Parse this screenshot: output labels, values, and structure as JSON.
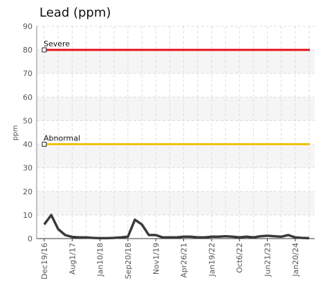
{
  "chart_data": {
    "type": "line",
    "title": "Lead (ppm)",
    "y_label": "ppm",
    "categories": [
      "Dec19/16",
      null,
      null,
      null,
      "Aug1/17",
      null,
      null,
      null,
      "Jan10/18",
      null,
      null,
      null,
      "Sep20/18",
      null,
      null,
      null,
      "Nov1/19",
      null,
      null,
      null,
      "Apr26/21",
      null,
      null,
      null,
      "Jan19/22",
      null,
      null,
      null,
      "Oct6/22",
      null,
      null,
      null,
      "Jun21/23",
      null,
      null,
      null,
      "Jan20/24",
      null,
      null
    ],
    "values": [
      6,
      10,
      4,
      1.5,
      0.7,
      0.5,
      0.5,
      0.3,
      0.2,
      0.2,
      0.3,
      0.5,
      0.8,
      8,
      6,
      1.5,
      1.5,
      0.5,
      0.5,
      0.5,
      0.8,
      0.8,
      0.5,
      0.5,
      0.8,
      0.8,
      1,
      0.8,
      0.5,
      0.8,
      0.5,
      1,
      1.2,
      1,
      0.8,
      1.5,
      0.5,
      0.3,
      0.2
    ],
    "color": "#3a3a3a",
    "thresholds": [
      {
        "name": "Severe",
        "value": 80,
        "color": "#e8101a"
      },
      {
        "name": "Abnormal",
        "value": 40,
        "color": "#f2c200"
      }
    ],
    "ylim": [
      0,
      90
    ],
    "yticks": [
      0,
      10,
      20,
      30,
      40,
      50,
      60,
      70,
      80,
      90
    ],
    "grid": true
  }
}
